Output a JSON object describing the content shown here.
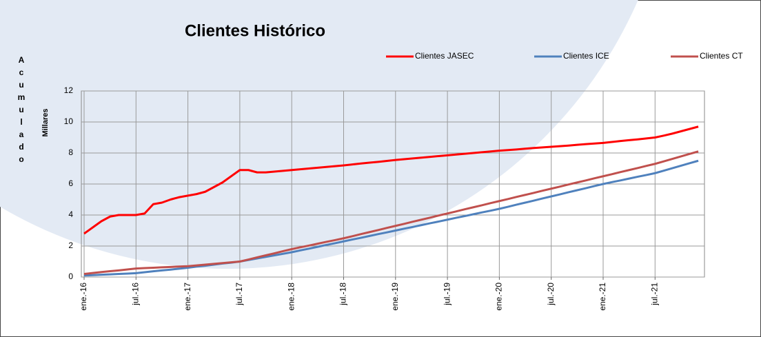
{
  "chart_data": {
    "type": "line",
    "title": "Clientes Histórico",
    "y_label": "Acumulado",
    "y_units_label": "Millares",
    "categories": [
      "ene.-16",
      null,
      null,
      null,
      null,
      null,
      "jul.-16",
      null,
      null,
      null,
      null,
      null,
      "ene.-17",
      null,
      null,
      null,
      null,
      null,
      "jul.-17",
      null,
      null,
      null,
      null,
      null,
      "ene.-18",
      null,
      null,
      null,
      null,
      null,
      "jul.-18",
      null,
      null,
      null,
      null,
      null,
      "ene.-19",
      null,
      null,
      null,
      null,
      null,
      "jul.-19",
      null,
      null,
      null,
      null,
      null,
      "ene.-20",
      null,
      null,
      null,
      null,
      null,
      "jul.-20",
      null,
      null,
      null,
      null,
      null,
      "ene.-21",
      null,
      null,
      null,
      null,
      null,
      "jul.-21",
      null,
      null,
      null,
      null,
      null
    ],
    "series": [
      {
        "name": "Clientes JASEC",
        "color": "#ff0000",
        "values": [
          2.8,
          3.2,
          3.6,
          3.9,
          4.0,
          4.0,
          4.0,
          4.1,
          4.7,
          4.8,
          5.0,
          5.15,
          5.25,
          5.35,
          5.5,
          5.8,
          6.1,
          6.5,
          6.9,
          6.9,
          6.75,
          6.75,
          6.8,
          6.85,
          6.9,
          6.95,
          7.0,
          7.05,
          7.1,
          7.15,
          7.2,
          7.26,
          7.32,
          7.38,
          7.43,
          7.49,
          7.55,
          7.6,
          7.65,
          7.7,
          7.75,
          7.8,
          7.85,
          7.9,
          7.95,
          8.0,
          8.05,
          8.1,
          8.15,
          8.19,
          8.23,
          8.28,
          8.32,
          8.36,
          8.4,
          8.44,
          8.48,
          8.53,
          8.57,
          8.61,
          8.65,
          8.71,
          8.77,
          8.83,
          8.88,
          8.94,
          9.0,
          9.12,
          9.25,
          9.4,
          9.55,
          9.7
        ]
      },
      {
        "name": "Clientes ICE",
        "color": "#4f81bd",
        "values": [
          0.1,
          0.12,
          0.15,
          0.17,
          0.2,
          0.22,
          0.25,
          0.31,
          0.37,
          0.43,
          0.48,
          0.54,
          0.6,
          0.67,
          0.73,
          0.8,
          0.87,
          0.93,
          1.0,
          1.1,
          1.2,
          1.3,
          1.4,
          1.5,
          1.6,
          1.72,
          1.83,
          1.95,
          2.07,
          2.18,
          2.3,
          2.42,
          2.53,
          2.65,
          2.77,
          2.88,
          3.0,
          3.12,
          3.23,
          3.35,
          3.47,
          3.58,
          3.7,
          3.82,
          3.93,
          4.05,
          4.17,
          4.28,
          4.4,
          4.53,
          4.67,
          4.8,
          4.93,
          5.07,
          5.2,
          5.33,
          5.47,
          5.6,
          5.73,
          5.87,
          6.0,
          6.12,
          6.23,
          6.35,
          6.47,
          6.58,
          6.7,
          6.86,
          7.02,
          7.18,
          7.34,
          7.5
        ]
      },
      {
        "name": "Clientes CT",
        "color": "#c0504d",
        "values": [
          0.2,
          0.26,
          0.32,
          0.38,
          0.43,
          0.49,
          0.55,
          0.58,
          0.6,
          0.63,
          0.65,
          0.68,
          0.7,
          0.75,
          0.8,
          0.85,
          0.9,
          0.95,
          1.0,
          1.13,
          1.27,
          1.4,
          1.53,
          1.67,
          1.8,
          1.92,
          2.03,
          2.15,
          2.27,
          2.38,
          2.5,
          2.63,
          2.77,
          2.9,
          3.03,
          3.17,
          3.3,
          3.43,
          3.57,
          3.7,
          3.83,
          3.97,
          4.1,
          4.23,
          4.37,
          4.5,
          4.63,
          4.77,
          4.9,
          5.03,
          5.17,
          5.3,
          5.43,
          5.57,
          5.7,
          5.83,
          5.97,
          6.1,
          6.23,
          6.37,
          6.5,
          6.63,
          6.77,
          6.9,
          7.03,
          7.17,
          7.3,
          7.46,
          7.62,
          7.78,
          7.94,
          8.1
        ]
      }
    ],
    "ylim": [
      0,
      12
    ],
    "yticks": [
      0,
      2,
      4,
      6,
      8,
      10,
      12
    ],
    "grid": true,
    "legend": "top-right"
  }
}
